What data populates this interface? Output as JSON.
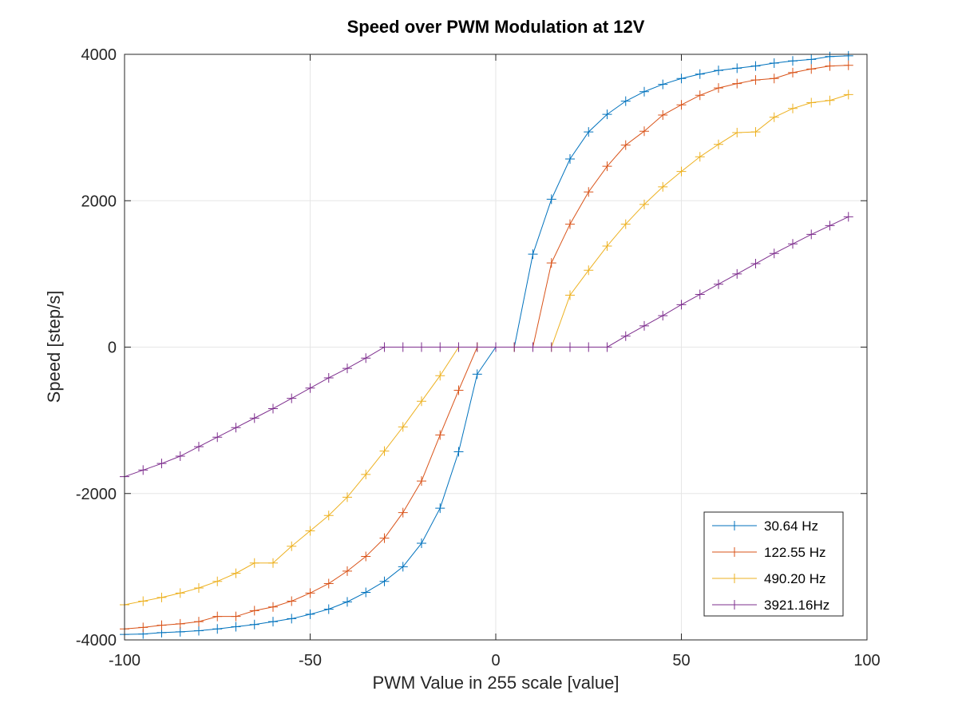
{
  "chart_data": {
    "type": "line",
    "title": "Speed over PWM Modulation at 12V",
    "xlabel": "PWM Value in 255 scale [value]",
    "ylabel": "Speed [step/s]",
    "xlim": [
      -100,
      100
    ],
    "ylim": [
      -4000,
      4000
    ],
    "xticks": [
      -100,
      -50,
      0,
      50,
      100
    ],
    "yticks": [
      -4000,
      -2000,
      0,
      2000,
      4000
    ],
    "grid": true,
    "legend_position": "bottom-right",
    "marker": "+",
    "x": [
      -100,
      -95,
      -90,
      -85,
      -80,
      -75,
      -70,
      -65,
      -60,
      -55,
      -50,
      -45,
      -40,
      -35,
      -30,
      -25,
      -20,
      -15,
      -10,
      -5,
      0,
      5,
      10,
      15,
      20,
      25,
      30,
      35,
      40,
      45,
      50,
      55,
      60,
      65,
      70,
      75,
      80,
      85,
      90,
      95
    ],
    "series": [
      {
        "name": "30.64 Hz",
        "color": "#0072bd",
        "values": [
          -3925,
          -3920,
          -3900,
          -3890,
          -3875,
          -3850,
          -3820,
          -3790,
          -3750,
          -3710,
          -3650,
          -3580,
          -3480,
          -3350,
          -3200,
          -3000,
          -2680,
          -2200,
          -1430,
          -370,
          0,
          0,
          1270,
          2020,
          2570,
          2940,
          3180,
          3360,
          3490,
          3590,
          3670,
          3730,
          3780,
          3810,
          3840,
          3880,
          3910,
          3930,
          3970,
          3980
        ]
      },
      {
        "name": "122.55 Hz",
        "color": "#d95319",
        "values": [
          -3850,
          -3830,
          -3800,
          -3780,
          -3750,
          -3680,
          -3680,
          -3600,
          -3550,
          -3470,
          -3360,
          -3230,
          -3060,
          -2860,
          -2610,
          -2260,
          -1830,
          -1200,
          -590,
          0,
          0,
          0,
          0,
          1150,
          1680,
          2120,
          2470,
          2760,
          2950,
          3170,
          3310,
          3440,
          3540,
          3600,
          3650,
          3670,
          3750,
          3800,
          3840,
          3850
        ]
      },
      {
        "name": "490.20 Hz",
        "color": "#edb120",
        "values": [
          -3520,
          -3470,
          -3420,
          -3360,
          -3290,
          -3200,
          -3090,
          -2950,
          -2950,
          -2720,
          -2510,
          -2300,
          -2050,
          -1740,
          -1420,
          -1090,
          -740,
          -390,
          0,
          0,
          0,
          0,
          0,
          0,
          710,
          1050,
          1380,
          1680,
          1950,
          2190,
          2400,
          2600,
          2770,
          2930,
          2940,
          3140,
          3260,
          3340,
          3370,
          3450
        ]
      },
      {
        "name": "3921.16Hz",
        "color": "#7e2f8e",
        "values": [
          -1770,
          -1680,
          -1590,
          -1490,
          -1360,
          -1230,
          -1100,
          -970,
          -840,
          -700,
          -560,
          -420,
          -290,
          -150,
          0,
          0,
          0,
          0,
          0,
          0,
          0,
          0,
          0,
          0,
          0,
          0,
          0,
          150,
          290,
          430,
          580,
          720,
          860,
          1000,
          1140,
          1280,
          1410,
          1540,
          1660,
          1780
        ]
      }
    ]
  }
}
